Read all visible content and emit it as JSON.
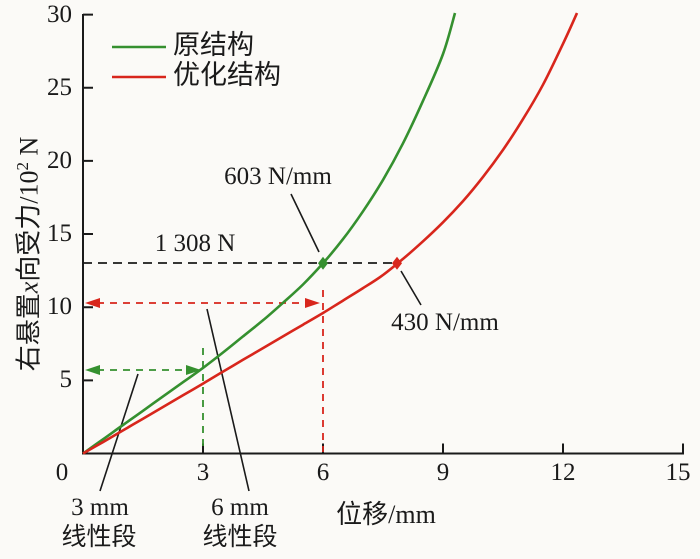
{
  "colors": {
    "green": "#35902f",
    "red": "#d8261c",
    "black": "#1a1a1a",
    "background": "#fbfaf7"
  },
  "legend": {
    "items": [
      {
        "label": "原结构",
        "color": "#35902f"
      },
      {
        "label": "优化结构",
        "color": "#d8261c"
      }
    ]
  },
  "axes": {
    "x": {
      "label": "位移/mm",
      "ticks": [
        "0",
        "3",
        "6",
        "9",
        "12",
        "15"
      ],
      "range": [
        0,
        15
      ]
    },
    "y": {
      "label_full": "右悬置x向受力/10² N",
      "label_p1": "右悬置",
      "label_var": "x",
      "label_p2": "向受力/10",
      "label_sup": "2",
      "label_p3": " N",
      "ticks": [
        "30",
        "25",
        "20",
        "15",
        "10",
        "5"
      ],
      "range": [
        0,
        30
      ]
    }
  },
  "annotations": {
    "green_stiffness": "603 N/mm",
    "force_level": "1 308 N",
    "red_stiffness": "430 N/mm",
    "seg3_value": "3 mm",
    "seg3_caption": "线性段",
    "seg6_value": "6 mm",
    "seg6_caption": "线性段"
  },
  "chart_data": {
    "type": "line",
    "title": "",
    "xlabel": "位移/mm",
    "ylabel": "右悬置x向受力/10² N",
    "xlim": [
      0,
      15
    ],
    "ylim": [
      0,
      30
    ],
    "grid": false,
    "legend_position": "upper-left-inside",
    "series": [
      {
        "name": "原结构",
        "color": "#35902f",
        "marker_point": [
          6,
          13
        ],
        "points": [
          [
            0,
            0
          ],
          [
            0.5,
            0.97
          ],
          [
            1,
            1.95
          ],
          [
            1.5,
            2.92
          ],
          [
            2,
            3.9
          ],
          [
            2.5,
            4.87
          ],
          [
            3,
            5.85
          ],
          [
            3.5,
            6.9
          ],
          [
            4,
            8.0
          ],
          [
            4.5,
            9.1
          ],
          [
            5,
            10.3
          ],
          [
            5.5,
            11.55
          ],
          [
            6,
            13.0
          ],
          [
            6.5,
            14.65
          ],
          [
            7,
            16.55
          ],
          [
            7.5,
            18.7
          ],
          [
            8,
            21.2
          ],
          [
            8.5,
            24.1
          ],
          [
            9,
            27.3
          ],
          [
            9.3,
            30.1
          ]
        ]
      },
      {
        "name": "优化结构",
        "color": "#d8261c",
        "marker_point": [
          7.85,
          13
        ],
        "points": [
          [
            0,
            0
          ],
          [
            0.5,
            0.78
          ],
          [
            1,
            1.58
          ],
          [
            1.5,
            2.38
          ],
          [
            2,
            3.18
          ],
          [
            2.5,
            3.98
          ],
          [
            3,
            4.78
          ],
          [
            3.5,
            5.6
          ],
          [
            4,
            6.4
          ],
          [
            4.5,
            7.2
          ],
          [
            5,
            8.0
          ],
          [
            5.5,
            8.8
          ],
          [
            6,
            9.6
          ],
          [
            6.5,
            10.45
          ],
          [
            7,
            11.3
          ],
          [
            7.5,
            12.2
          ],
          [
            8,
            13.3
          ],
          [
            8.5,
            14.5
          ],
          [
            9,
            15.8
          ],
          [
            9.5,
            17.25
          ],
          [
            10,
            18.9
          ],
          [
            10.5,
            20.75
          ],
          [
            11,
            22.85
          ],
          [
            11.5,
            25.2
          ],
          [
            12,
            28.0
          ],
          [
            12.35,
            30.1
          ]
        ]
      }
    ],
    "annotations": [
      {
        "text": "603 N/mm",
        "points_to": [
          6,
          13
        ],
        "meaning": "tangent stiffness of original structure at marker"
      },
      {
        "text": "430 N/mm",
        "points_to": [
          7.85,
          13
        ],
        "meaning": "tangent stiffness of optimized structure at marker"
      },
      {
        "text": "1 308 N",
        "at_y": 13,
        "meaning": "force level of dashed reference line"
      },
      {
        "text": "3 mm 线性段",
        "span_x": [
          0,
          3
        ],
        "at_y": 5.7,
        "meaning": "linear segment of original structure"
      },
      {
        "text": "6 mm 线性段",
        "span_x": [
          0,
          6
        ],
        "at_y": 10.3,
        "meaning": "linear segment of optimized structure"
      }
    ]
  }
}
